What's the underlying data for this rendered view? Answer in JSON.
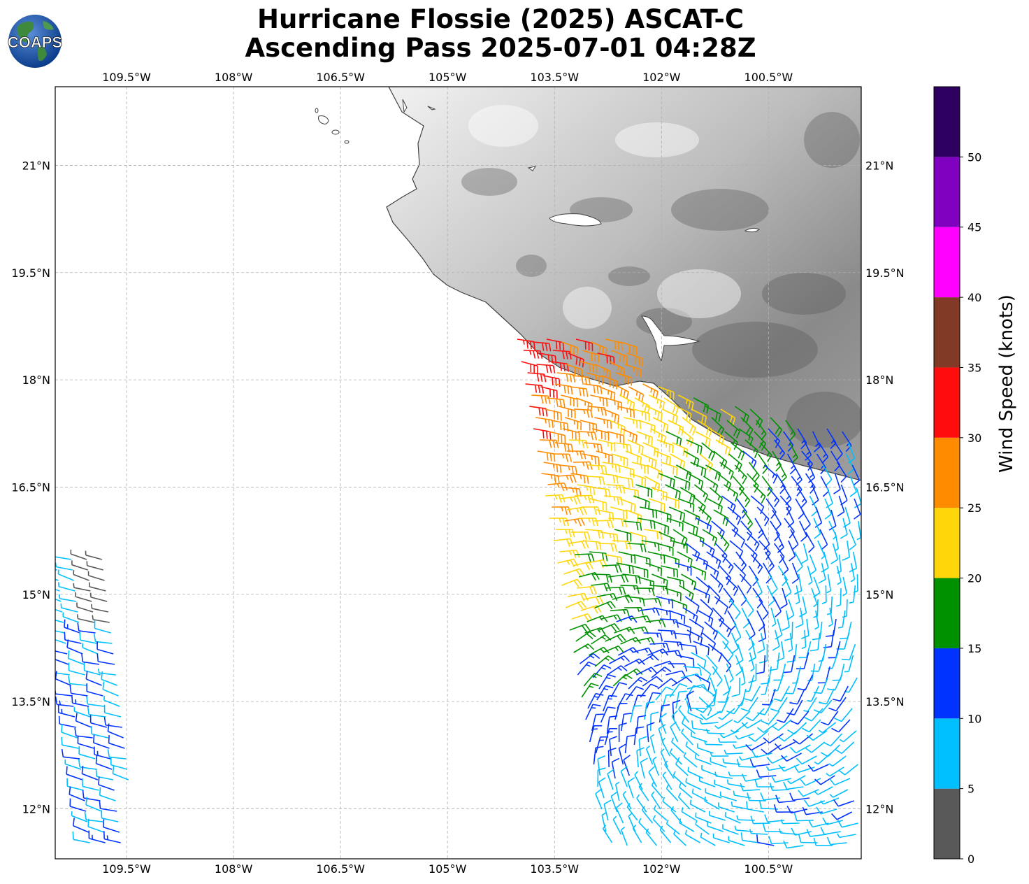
{
  "title": {
    "line1": "Hurricane Flossie (2025) ASCAT-C",
    "line2": "Ascending Pass 2025-07-01 04:28Z"
  },
  "logo": {
    "text": "COAPS",
    "icon": "globe-logo-icon"
  },
  "map": {
    "lon_range": [
      -110.5,
      -99.2
    ],
    "lat_range": [
      11.3,
      22.1
    ],
    "lon_ticks": [
      "109.5°W",
      "108°W",
      "106.5°W",
      "105°W",
      "103.5°W",
      "102°W",
      "100.5°W"
    ],
    "lat_ticks": [
      "21°N",
      "19.5°N",
      "18°N",
      "16.5°N",
      "15°N",
      "13.5°N",
      "12°N"
    ],
    "gridlines": true,
    "background": "grayscale terrain over land, white ocean"
  },
  "colorbar": {
    "label": "Wind Speed (knots)",
    "ticks": [
      "0",
      "5",
      "10",
      "15",
      "20",
      "25",
      "30",
      "35",
      "40",
      "45",
      "50"
    ],
    "bins": [
      {
        "range": [
          0,
          5
        ],
        "color": "#595959"
      },
      {
        "range": [
          5,
          10
        ],
        "color": "#00bfff"
      },
      {
        "range": [
          10,
          15
        ],
        "color": "#0033ff"
      },
      {
        "range": [
          15,
          20
        ],
        "color": "#009100"
      },
      {
        "range": [
          20,
          25
        ],
        "color": "#ffd60a"
      },
      {
        "range": [
          25,
          30
        ],
        "color": "#ff8c00"
      },
      {
        "range": [
          30,
          35
        ],
        "color": "#ff0d0d"
      },
      {
        "range": [
          35,
          40
        ],
        "color": "#803a26"
      },
      {
        "range": [
          40,
          45
        ],
        "color": "#ff00ff"
      },
      {
        "range": [
          45,
          50
        ],
        "color": "#8000c0"
      },
      {
        "range": [
          50,
          55
        ],
        "color": "#2d005f"
      }
    ]
  }
}
